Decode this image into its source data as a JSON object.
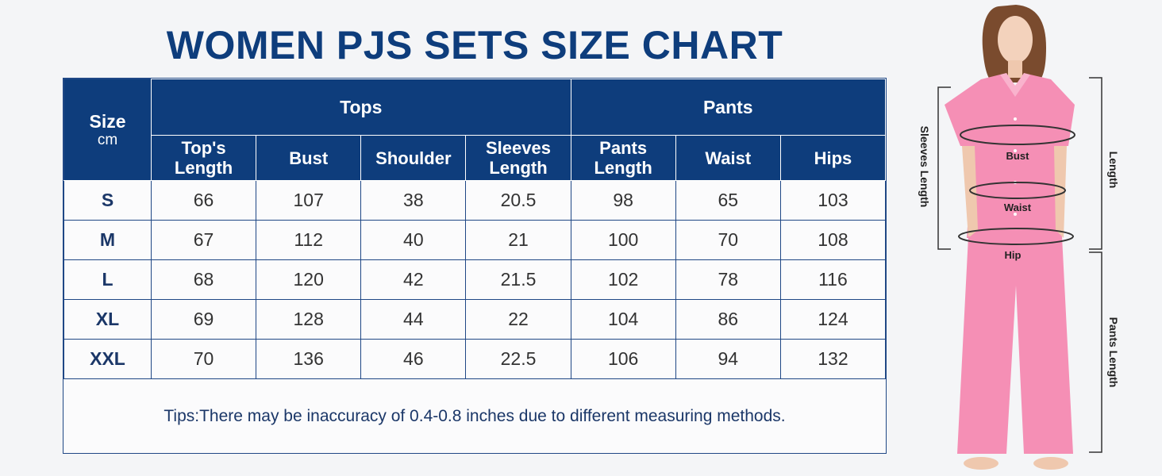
{
  "title": "WOMEN PJS SETS SIZE CHART",
  "table": {
    "size_header": "Size",
    "unit": "cm",
    "group_tops": "Tops",
    "group_pants": "Pants",
    "columns": [
      {
        "line1": "Top's",
        "line2": "Length"
      },
      {
        "line1": "Bust",
        "line2": ""
      },
      {
        "line1": "Shoulder",
        "line2": ""
      },
      {
        "line1": "Sleeves",
        "line2": "Length"
      },
      {
        "line1": "Pants",
        "line2": "Length"
      },
      {
        "line1": "Waist",
        "line2": ""
      },
      {
        "line1": "Hips",
        "line2": ""
      }
    ],
    "rows": [
      {
        "size": "S",
        "values": [
          "66",
          "107",
          "38",
          "20.5",
          "98",
          "65",
          "103"
        ]
      },
      {
        "size": "M",
        "values": [
          "67",
          "112",
          "40",
          "21",
          "100",
          "70",
          "108"
        ]
      },
      {
        "size": "L",
        "values": [
          "68",
          "120",
          "42",
          "21.5",
          "102",
          "78",
          "116"
        ]
      },
      {
        "size": "XL",
        "values": [
          "69",
          "128",
          "44",
          "22",
          "104",
          "86",
          "124"
        ]
      },
      {
        "size": "XXL",
        "values": [
          "70",
          "136",
          "46",
          "22.5",
          "106",
          "94",
          "132"
        ]
      }
    ],
    "tips": "Tips:There may be inaccuracy of 0.4-0.8 inches due to different measuring methods."
  },
  "figure": {
    "labels": {
      "bust": "Bust",
      "waist": "Waist",
      "hip": "Hip",
      "sleeves_length": "Sleeves Length",
      "length": "Length",
      "pants_length": "Pants Length"
    }
  },
  "colors": {
    "header_bg": "#0e3d7c",
    "title": "#0e3d7c",
    "pajama_pink": "#f58fb5"
  }
}
